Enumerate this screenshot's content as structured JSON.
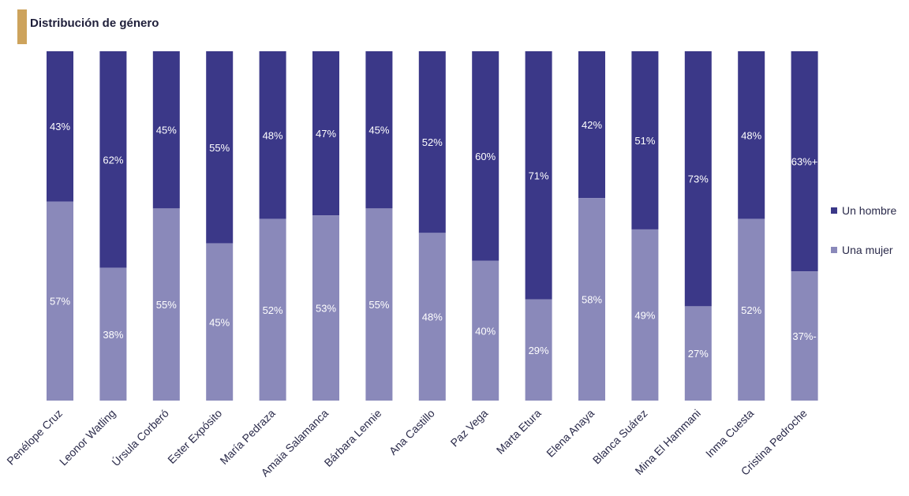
{
  "title": "Distribución de género",
  "chart_data": {
    "type": "bar",
    "stacked": true,
    "title": "Distribución de género",
    "categories": [
      "Penélope Cruz",
      "Leonor Watling",
      "Úrsula Corberó",
      "Ester Expósito",
      "María Pedraza",
      "Amaia Salamanca",
      "Bárbara Lennie",
      "Ana Castillo",
      "Paz Vega",
      "Marta Etura",
      "Elena Anaya",
      "Blanca Suárez",
      "Mina El Hammani",
      "Inma Cuesta",
      "Cristina Pedroche"
    ],
    "series": [
      {
        "name": "Un hombre",
        "color": "#3b3888",
        "values": [
          43,
          62,
          45,
          55,
          48,
          47,
          45,
          52,
          60,
          71,
          42,
          51,
          73,
          48,
          63
        ],
        "labels": [
          "43%",
          "62%",
          "45%",
          "55%",
          "48%",
          "47%",
          "45%",
          "52%",
          "60%",
          "71%",
          "42%",
          "51%",
          "73%",
          "48%",
          "63%+"
        ]
      },
      {
        "name": "Una mujer",
        "color": "#8a89ba",
        "values": [
          57,
          38,
          55,
          45,
          52,
          53,
          55,
          48,
          40,
          29,
          58,
          49,
          27,
          52,
          37
        ],
        "labels": [
          "57%",
          "38%",
          "55%",
          "45%",
          "52%",
          "53%",
          "55%",
          "48%",
          "40%",
          "29%",
          "58%",
          "49%",
          "27%",
          "52%",
          "37%-"
        ]
      }
    ],
    "ylim": [
      0,
      100
    ],
    "legend_position": "right"
  }
}
